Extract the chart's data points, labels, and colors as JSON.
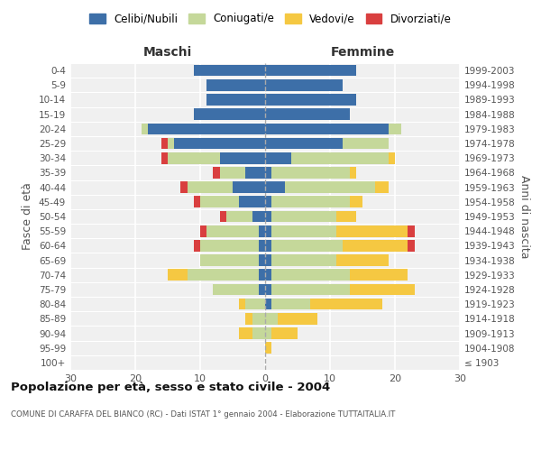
{
  "age_groups": [
    "100+",
    "95-99",
    "90-94",
    "85-89",
    "80-84",
    "75-79",
    "70-74",
    "65-69",
    "60-64",
    "55-59",
    "50-54",
    "45-49",
    "40-44",
    "35-39",
    "30-34",
    "25-29",
    "20-24",
    "15-19",
    "10-14",
    "5-9",
    "0-4"
  ],
  "birth_years": [
    "≤ 1903",
    "1904-1908",
    "1909-1913",
    "1914-1918",
    "1919-1923",
    "1924-1928",
    "1929-1933",
    "1934-1938",
    "1939-1943",
    "1944-1948",
    "1949-1953",
    "1954-1958",
    "1959-1963",
    "1964-1968",
    "1969-1973",
    "1974-1978",
    "1979-1983",
    "1984-1988",
    "1989-1993",
    "1994-1998",
    "1999-2003"
  ],
  "males": {
    "celibe": [
      0,
      0,
      0,
      0,
      0,
      1,
      1,
      1,
      1,
      1,
      2,
      4,
      5,
      3,
      7,
      14,
      18,
      11,
      9,
      9,
      11
    ],
    "coniugato": [
      0,
      0,
      2,
      2,
      3,
      7,
      11,
      9,
      9,
      8,
      4,
      6,
      7,
      4,
      8,
      1,
      1,
      0,
      0,
      0,
      0
    ],
    "vedovo": [
      0,
      0,
      2,
      1,
      1,
      0,
      3,
      0,
      0,
      0,
      0,
      0,
      0,
      0,
      0,
      0,
      0,
      0,
      0,
      0,
      0
    ],
    "divorziato": [
      0,
      0,
      0,
      0,
      0,
      0,
      0,
      0,
      1,
      1,
      1,
      1,
      1,
      1,
      1,
      1,
      0,
      0,
      0,
      0,
      0
    ]
  },
  "females": {
    "nubile": [
      0,
      0,
      0,
      0,
      1,
      1,
      1,
      1,
      1,
      1,
      1,
      1,
      3,
      1,
      4,
      12,
      19,
      13,
      14,
      12,
      14
    ],
    "coniugata": [
      0,
      0,
      1,
      2,
      6,
      12,
      12,
      10,
      11,
      10,
      10,
      12,
      14,
      12,
      15,
      7,
      2,
      0,
      0,
      0,
      0
    ],
    "vedova": [
      0,
      1,
      4,
      6,
      11,
      10,
      9,
      8,
      10,
      11,
      3,
      2,
      2,
      1,
      1,
      0,
      0,
      0,
      0,
      0,
      0
    ],
    "divorziata": [
      0,
      0,
      0,
      0,
      0,
      0,
      0,
      0,
      1,
      1,
      0,
      0,
      0,
      0,
      0,
      0,
      0,
      0,
      0,
      0,
      0
    ]
  },
  "color_celibe": "#3d6fa8",
  "color_coniugato": "#c5d89a",
  "color_vedovo": "#f5c842",
  "color_divorziato": "#d93f3f",
  "title": "Popolazione per età, sesso e stato civile - 2004",
  "subtitle": "COMUNE DI CARAFFA DEL BIANCO (RC) - Dati ISTAT 1° gennaio 2004 - Elaborazione TUTTAITALIA.IT",
  "xlabel_maschi": "Maschi",
  "xlabel_femmine": "Femmine",
  "ylabel_left": "Fasce di età",
  "ylabel_right": "Anni di nascita",
  "xlim": 30,
  "bg_color": "#f0f0f0",
  "legend_labels": [
    "Celibi/Nubili",
    "Coniugati/e",
    "Vedovi/e",
    "Divorziati/e"
  ]
}
